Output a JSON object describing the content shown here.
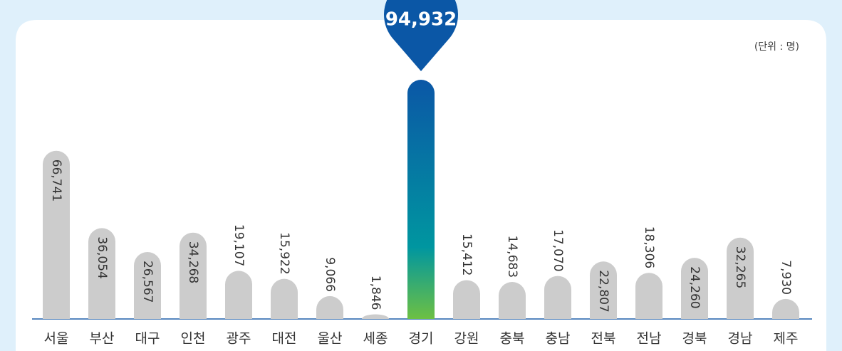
{
  "chart_data": {
    "type": "bar",
    "unit": "(단위 : 명)",
    "categories": [
      "서울",
      "부산",
      "대구",
      "인천",
      "광주",
      "대전",
      "울산",
      "세종",
      "경기",
      "강원",
      "충북",
      "충남",
      "전북",
      "전남",
      "경북",
      "경남",
      "제주"
    ],
    "values": [
      66741,
      36054,
      26567,
      34268,
      19107,
      15922,
      9066,
      1846,
      94932,
      15412,
      14683,
      17070,
      22807,
      18306,
      24260,
      32265,
      7930
    ],
    "value_labels": [
      "66,741",
      "36,054",
      "26,567",
      "34,268",
      "19,107",
      "15,922",
      "9,066",
      "1,846",
      "94,932",
      "15,412",
      "14,683",
      "17,070",
      "22,807",
      "18,306",
      "24,260",
      "32,265",
      "7,930"
    ],
    "color": "#cccccc",
    "highlight_colors": [
      "#0b57a6",
      "#6dc043"
    ]
  }
}
